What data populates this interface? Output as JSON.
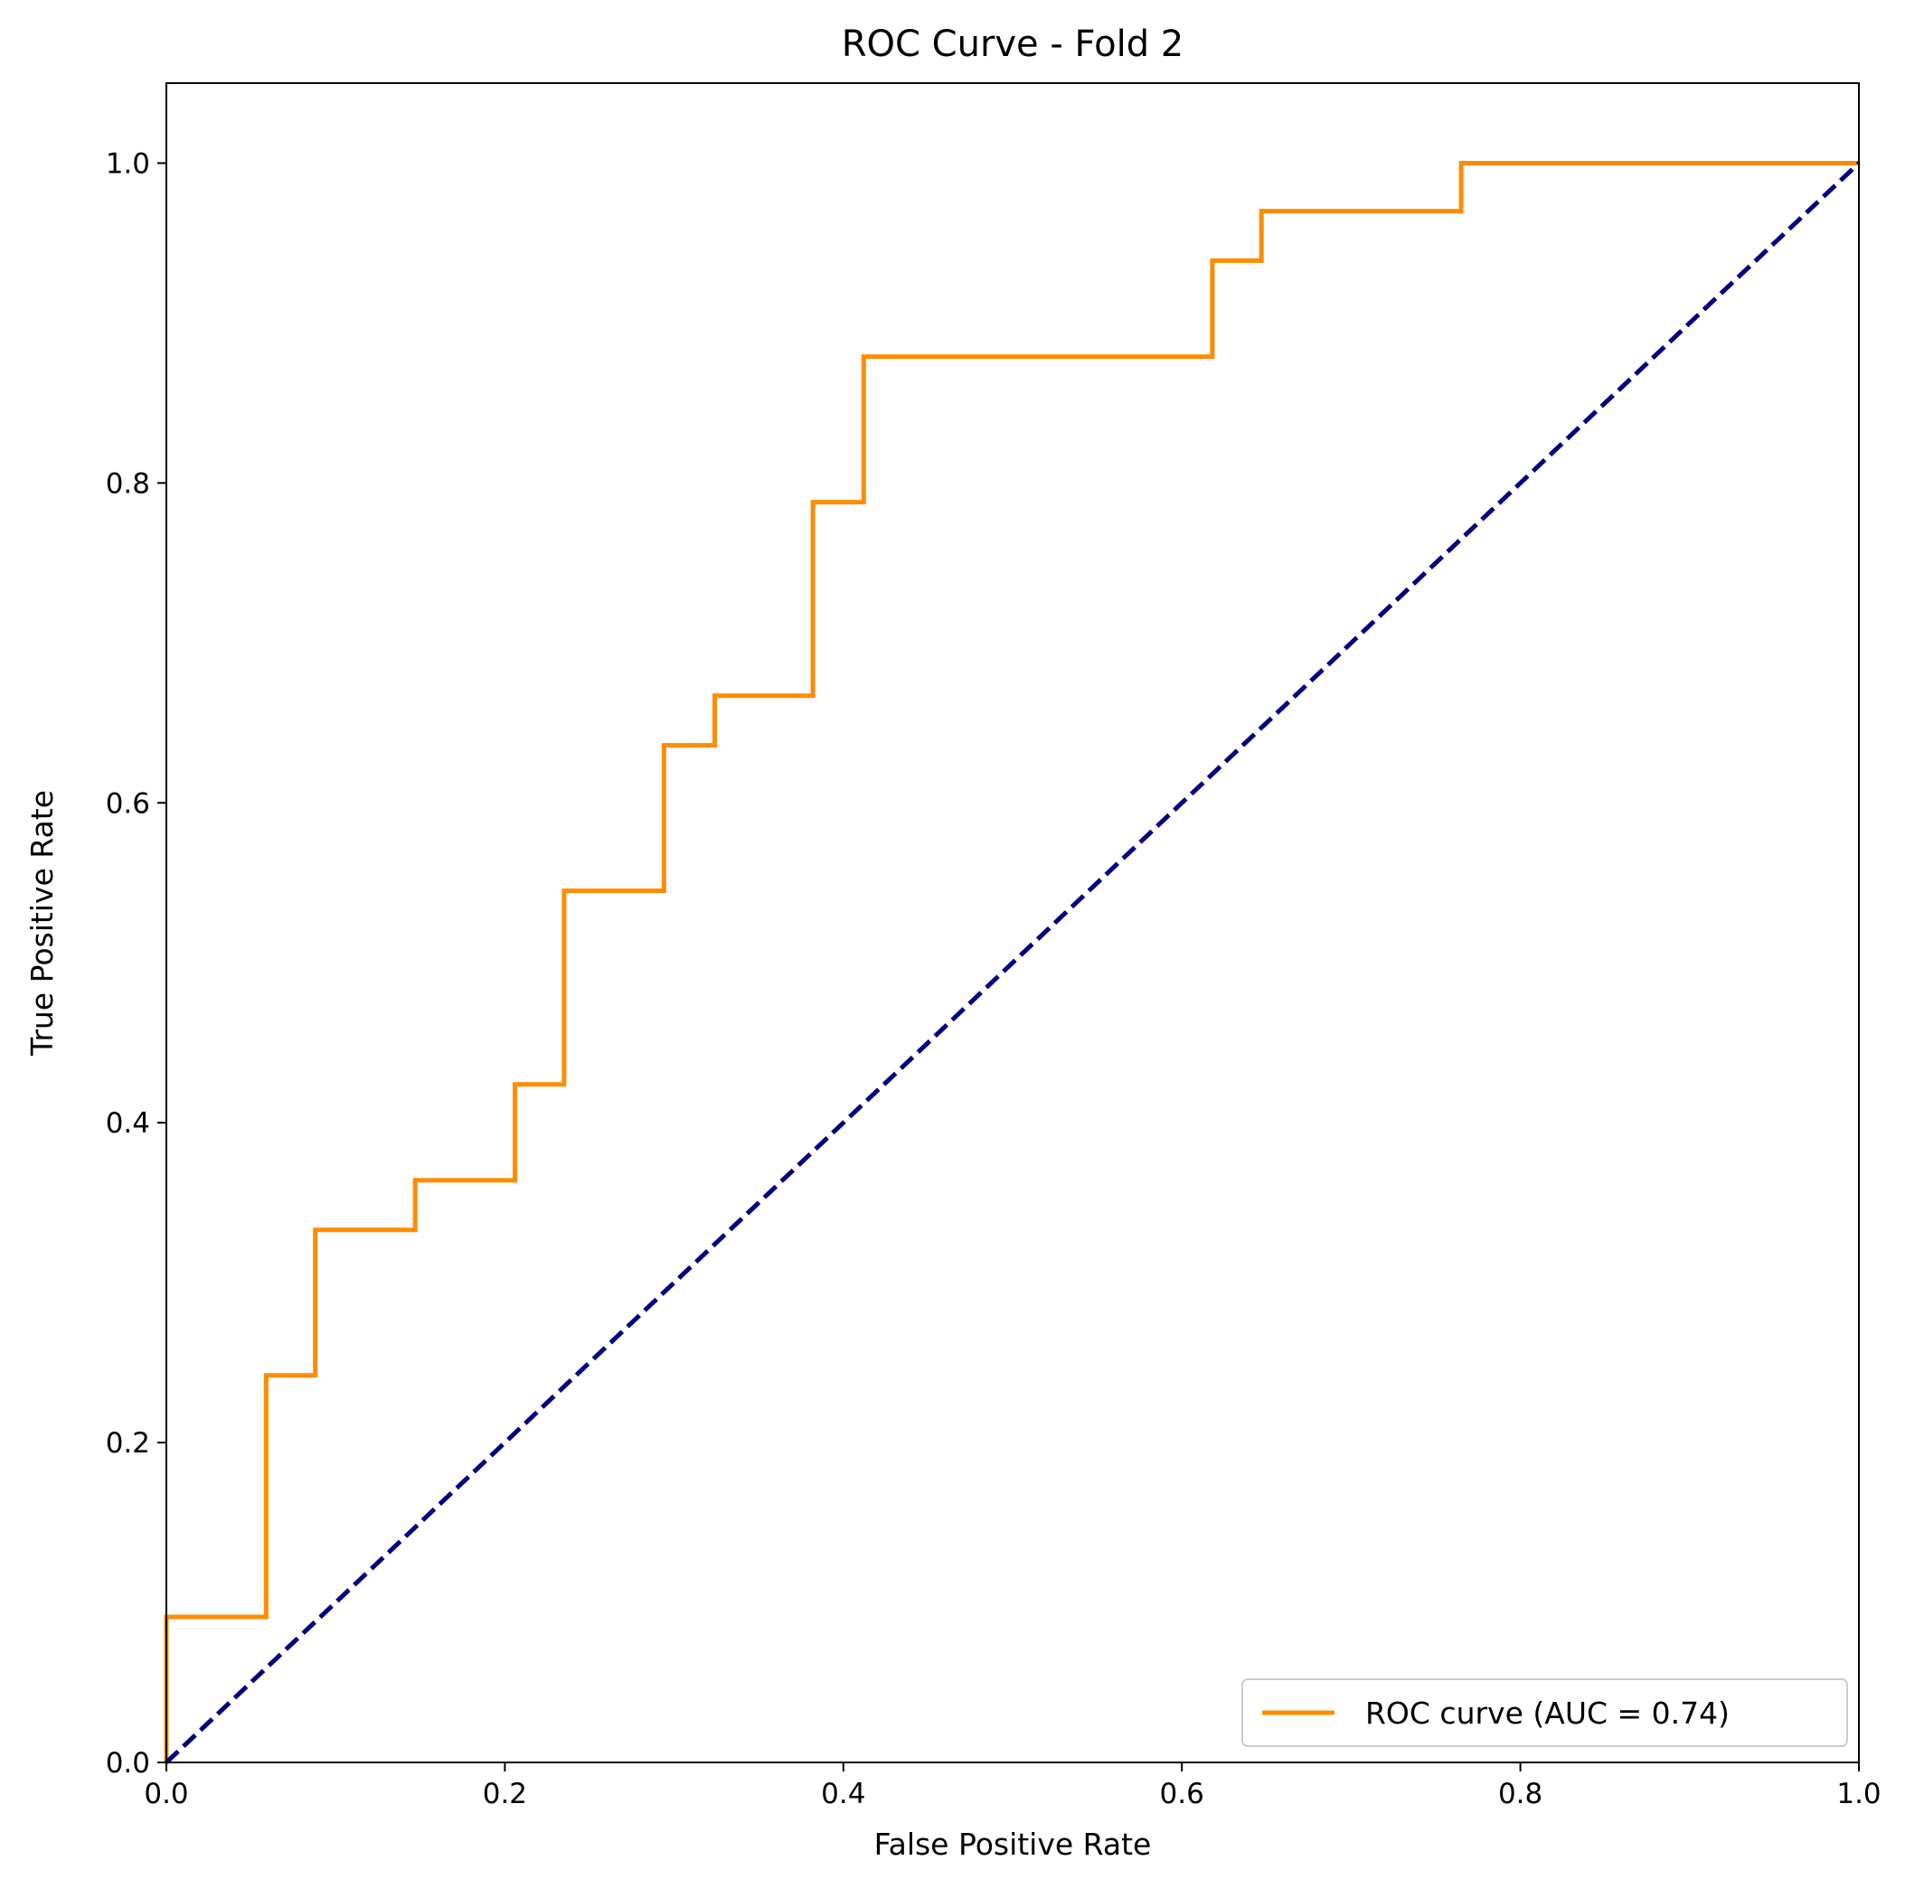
{
  "chart_data": {
    "type": "line",
    "title": "ROC Curve - Fold 2",
    "xlabel": "False Positive Rate",
    "ylabel": "True Positive Rate",
    "xlim": [
      0.0,
      1.0
    ],
    "ylim": [
      0.0,
      1.05
    ],
    "x_ticks": [
      "0.0",
      "0.2",
      "0.4",
      "0.6",
      "0.8",
      "1.0"
    ],
    "y_ticks": [
      "0.0",
      "0.2",
      "0.4",
      "0.6",
      "0.8",
      "1.0"
    ],
    "grid": false,
    "legend_position": "lower-right",
    "series": [
      {
        "name": "ROC curve (AUC = 0.74)",
        "color": "#ff8c00",
        "line_style": "solid",
        "step": true,
        "x": [
          0.0,
          0.0,
          0.059,
          0.059,
          0.088,
          0.088,
          0.147,
          0.147,
          0.206,
          0.206,
          0.235,
          0.235,
          0.294,
          0.294,
          0.324,
          0.324,
          0.382,
          0.382,
          0.412,
          0.412,
          0.618,
          0.618,
          0.647,
          0.647,
          0.765,
          0.765,
          1.0
        ],
        "y": [
          0.0,
          0.091,
          0.091,
          0.242,
          0.242,
          0.333,
          0.333,
          0.364,
          0.364,
          0.424,
          0.424,
          0.545,
          0.545,
          0.636,
          0.636,
          0.667,
          0.667,
          0.788,
          0.788,
          0.879,
          0.879,
          0.939,
          0.939,
          0.97,
          0.97,
          1.0,
          1.0
        ]
      },
      {
        "color": "#000080",
        "line_style": "dashed",
        "step": false,
        "x": [
          0.0,
          1.0
        ],
        "y": [
          0.0,
          1.0
        ]
      }
    ]
  }
}
